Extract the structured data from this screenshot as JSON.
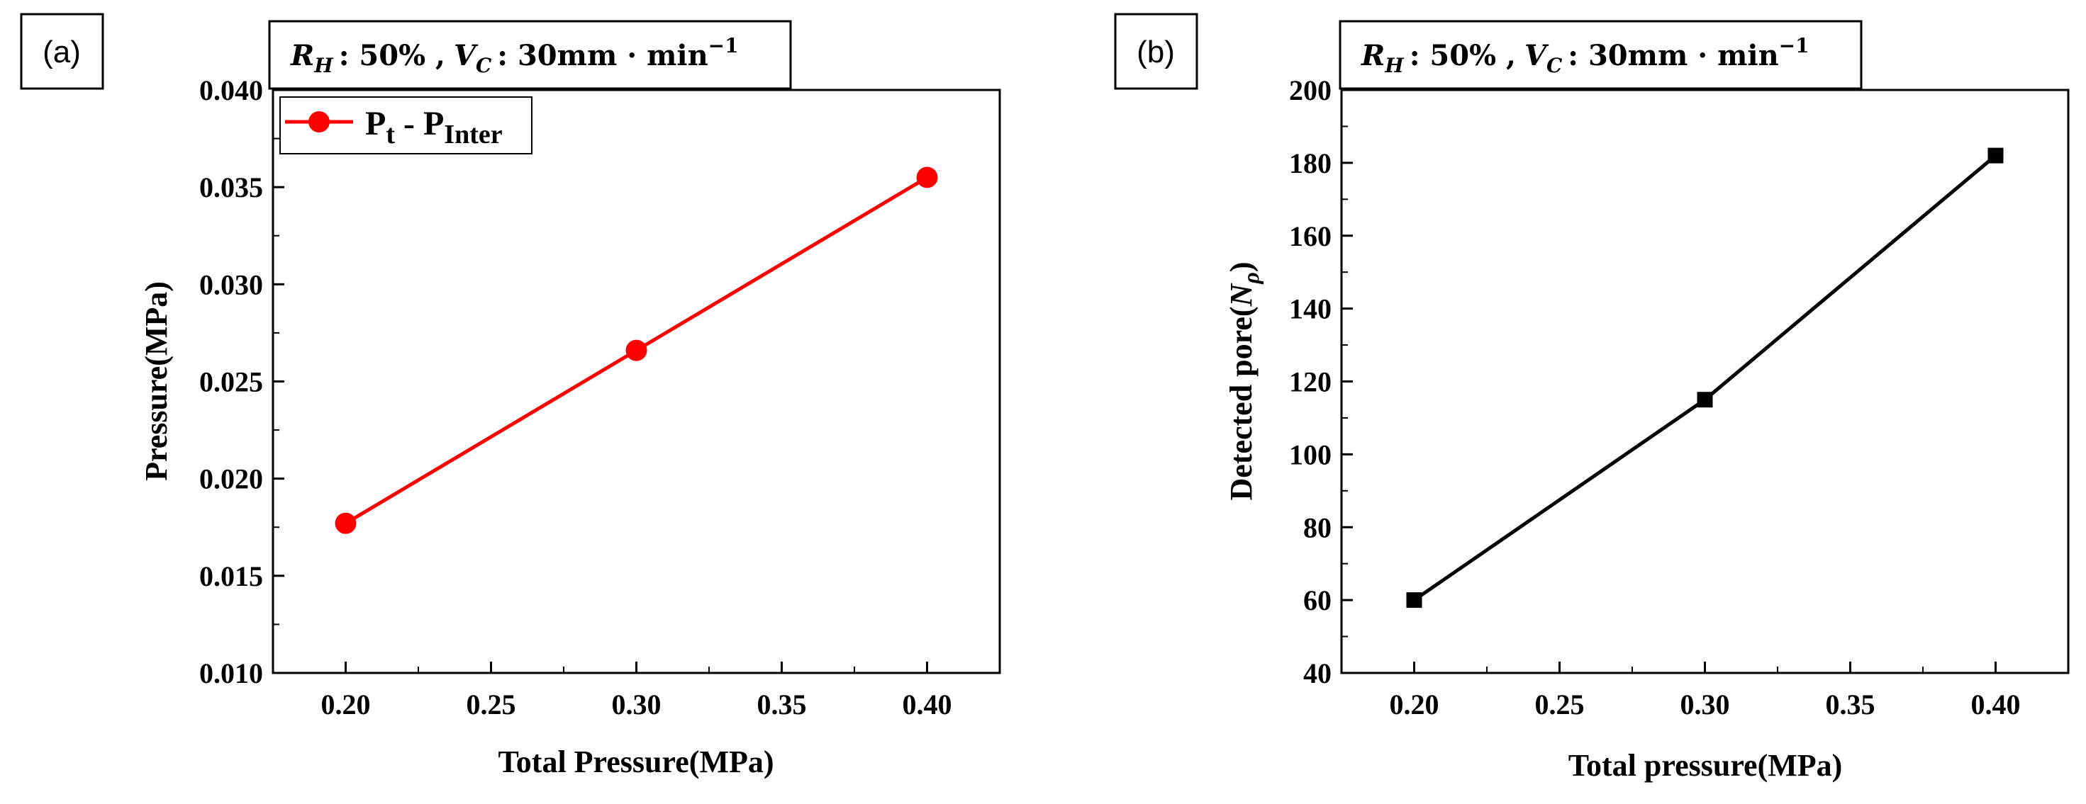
{
  "chart_data": [
    {
      "panel_label": "(a)",
      "type": "line",
      "title": "",
      "condition": {
        "rh_symbol": "R",
        "rh_sub": "H",
        "rh_value": ": 50% ,",
        "vc_symbol": "V",
        "vc_sub": "C",
        "vc_value": ": 30mm · min",
        "vc_exp": "−1"
      },
      "xlabel": "Total Pressure(MPa)",
      "ylabel": "Pressure(MPa)",
      "xlim": [
        0.175,
        0.425
      ],
      "ylim": [
        0.01,
        0.04
      ],
      "x_ticks": [
        0.2,
        0.25,
        0.3,
        0.35,
        0.4
      ],
      "x_tick_labels": [
        "0.20",
        "0.25",
        "0.30",
        "0.35",
        "0.40"
      ],
      "y_ticks": [
        0.01,
        0.015,
        0.02,
        0.025,
        0.03,
        0.035,
        0.04
      ],
      "y_tick_labels": [
        "0.010",
        "0.015",
        "0.020",
        "0.025",
        "0.030",
        "0.035",
        "0.040"
      ],
      "legend": {
        "position": "top-left",
        "base1": "P",
        "sub1": "t",
        "sep": " - ",
        "base2": "P",
        "sub2": "Inter"
      },
      "series": [
        {
          "name": "Pt - PInter",
          "color": "#ff0000",
          "marker": "circle",
          "x": [
            0.2,
            0.3,
            0.4
          ],
          "y": [
            0.0177,
            0.0266,
            0.0355
          ]
        }
      ]
    },
    {
      "panel_label": "(b)",
      "type": "line",
      "title": "",
      "condition": {
        "rh_symbol": "R",
        "rh_sub": "H",
        "rh_value": ": 50% ,",
        "vc_symbol": "V",
        "vc_sub": "C",
        "vc_value": ": 30mm · min",
        "vc_exp": "−1"
      },
      "xlabel": "Total pressure(MPa)",
      "ylabel_main": "Detected pore(",
      "ylabel_sym": "N",
      "ylabel_sub": "ρ",
      "ylabel_close": ")",
      "xlim": [
        0.175,
        0.425
      ],
      "ylim": [
        40,
        200
      ],
      "x_ticks": [
        0.2,
        0.25,
        0.3,
        0.35,
        0.4
      ],
      "x_tick_labels": [
        "0.20",
        "0.25",
        "0.30",
        "0.35",
        "0.40"
      ],
      "y_ticks": [
        40,
        60,
        80,
        100,
        120,
        140,
        160,
        180,
        200
      ],
      "y_tick_labels": [
        "40",
        "60",
        "80",
        "100",
        "120",
        "140",
        "160",
        "180",
        "200"
      ],
      "series": [
        {
          "name": "Detected pore",
          "color": "#000000",
          "marker": "square",
          "x": [
            0.2,
            0.3,
            0.4
          ],
          "y": [
            60,
            115,
            182
          ]
        }
      ]
    }
  ]
}
